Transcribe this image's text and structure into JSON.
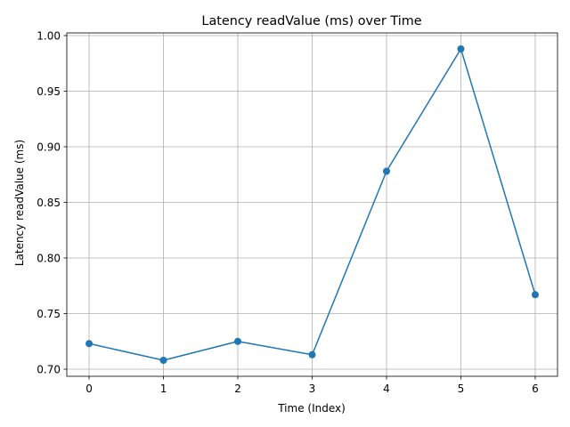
{
  "chart_data": {
    "type": "line",
    "title": "Latency readValue (ms) over Time",
    "xlabel": "Time (Index)",
    "ylabel": "Latency readValue (ms)",
    "x": [
      0,
      1,
      2,
      3,
      4,
      5,
      6
    ],
    "series": [
      {
        "values": [
          0.723,
          0.708,
          0.725,
          0.713,
          0.878,
          0.988,
          0.767
        ],
        "color": "#1f77b4",
        "marker": "circle"
      }
    ],
    "xlim": [
      -0.3,
      6.3
    ],
    "ylim": [
      0.6936,
      1.0024
    ],
    "xticks": [
      0,
      1,
      2,
      3,
      4,
      5,
      6
    ],
    "xtick_labels": [
      "0",
      "1",
      "2",
      "3",
      "4",
      "5",
      "6"
    ],
    "yticks": [
      0.7,
      0.75,
      0.8,
      0.85,
      0.9,
      0.95,
      1.0
    ],
    "ytick_labels": [
      "0.70",
      "0.75",
      "0.80",
      "0.85",
      "0.90",
      "0.95",
      "1.00"
    ],
    "grid": true,
    "legend": "none"
  }
}
